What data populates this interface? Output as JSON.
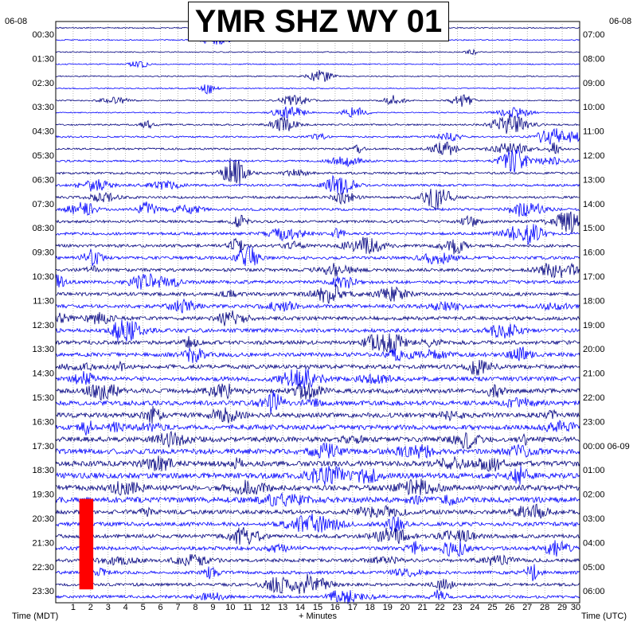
{
  "chart_data": {
    "type": "line",
    "title": "YMR SHZ WY 01",
    "date_left": "06-08",
    "date_right": "06-08",
    "xlabel": "+ Minutes",
    "left_axis_label": "Time (MDT)",
    "right_axis_label": "Time (UTC)",
    "xlim": [
      0,
      30
    ],
    "x_ticks": [
      "1",
      "2",
      "3",
      "4",
      "5",
      "6",
      "7",
      "8",
      "9",
      "10",
      "11",
      "12",
      "13",
      "14",
      "15",
      "16",
      "17",
      "18",
      "19",
      "20",
      "21",
      "22",
      "23",
      "24",
      "25",
      "26",
      "27",
      "28",
      "29",
      "30"
    ],
    "left_time_labels": [
      "00:30",
      "01:30",
      "02:30",
      "03:30",
      "04:30",
      "05:30",
      "06:30",
      "07:30",
      "08:30",
      "09:30",
      "10:30",
      "11:30",
      "12:30",
      "13:30",
      "14:30",
      "15:30",
      "16:30",
      "17:30",
      "18:30",
      "19:30",
      "20:30",
      "21:30",
      "22:30",
      "23:30"
    ],
    "right_time_labels": [
      "07:00",
      "08:00",
      "09:00",
      "10:00",
      "11:00",
      "12:00",
      "13:00",
      "14:00",
      "15:00",
      "16:00",
      "17:00",
      "18:00",
      "19:00",
      "20:00",
      "21:00",
      "22:00",
      "23:00",
      "00:00 06-09",
      "01:00",
      "02:00",
      "03:00",
      "04:00",
      "05:00",
      "06:00"
    ],
    "trace_count": 48,
    "series_colors": [
      "#000080",
      "#0000ff"
    ],
    "highlight": {
      "color": "#ff0000",
      "x_start": 1.35,
      "x_end": 2.15,
      "time_start": "19:30",
      "time_end": "23:30"
    }
  }
}
